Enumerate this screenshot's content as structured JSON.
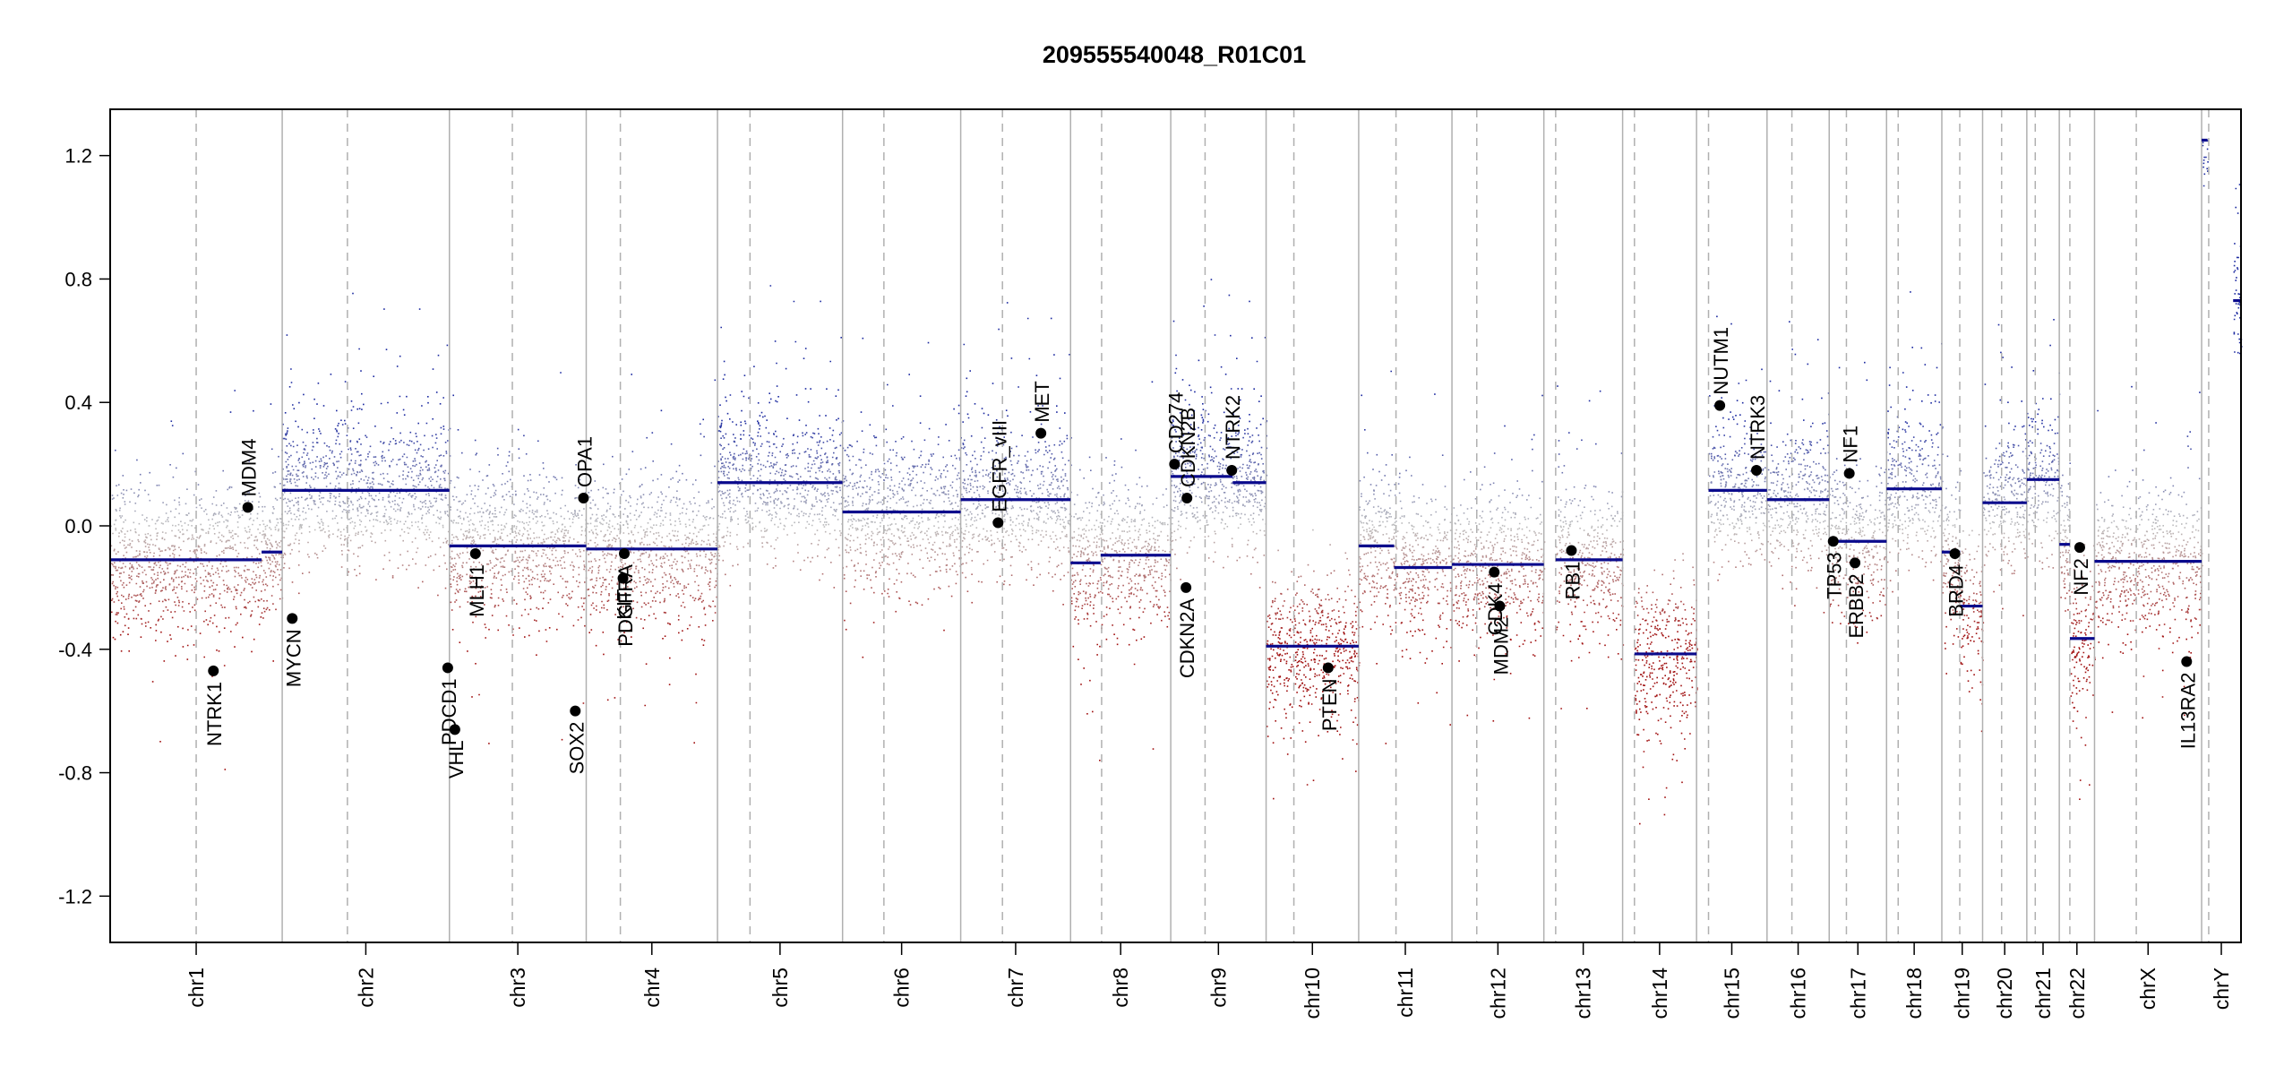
{
  "chart_data": {
    "type": "scatter",
    "title": "209555540048_R01C01",
    "xlabel": "",
    "ylabel": "",
    "ylim": [
      -1.35,
      1.35
    ],
    "yticks": [
      -1.2,
      -0.8,
      -0.4,
      0.0,
      0.4,
      0.8,
      1.2
    ],
    "ytick_labels": [
      "-1.2",
      "-0.8",
      "-0.4",
      "0.0",
      "0.4",
      "0.8",
      "1.2"
    ],
    "grid": false,
    "colors": {
      "gain": "#1c2aa0",
      "loss": "#a01010",
      "neutral": "#bdbdbd",
      "segment": "#0a0a8c",
      "gene": "#000000",
      "boundary": "#b0b0b0"
    },
    "chromosomes": [
      {
        "name": "chr1",
        "size": 249,
        "centromere": 0.5,
        "segments": [
          {
            "start": 0.0,
            "end": 0.88,
            "value": -0.11
          },
          {
            "start": 0.88,
            "end": 1.0,
            "value": -0.085
          }
        ]
      },
      {
        "name": "chr2",
        "size": 242,
        "centromere": 0.39,
        "segments": [
          {
            "start": 0.0,
            "end": 1.0,
            "value": 0.115
          }
        ]
      },
      {
        "name": "chr3",
        "size": 198,
        "centromere": 0.46,
        "segments": [
          {
            "start": 0.0,
            "end": 1.0,
            "value": -0.065
          }
        ]
      },
      {
        "name": "chr4",
        "size": 190,
        "centromere": 0.26,
        "segments": [
          {
            "start": 0.0,
            "end": 1.0,
            "value": -0.075
          }
        ]
      },
      {
        "name": "chr5",
        "size": 181,
        "centromere": 0.26,
        "segments": [
          {
            "start": 0.0,
            "end": 1.0,
            "value": 0.14
          }
        ]
      },
      {
        "name": "chr6",
        "size": 171,
        "centromere": 0.35,
        "segments": [
          {
            "start": 0.0,
            "end": 1.0,
            "value": 0.045
          }
        ]
      },
      {
        "name": "chr7",
        "size": 159,
        "centromere": 0.38,
        "segments": [
          {
            "start": 0.0,
            "end": 1.0,
            "value": 0.085
          }
        ]
      },
      {
        "name": "chr8",
        "size": 145,
        "centromere": 0.31,
        "segments": [
          {
            "start": 0.0,
            "end": 0.3,
            "value": -0.12
          },
          {
            "start": 0.3,
            "end": 1.0,
            "value": -0.095
          }
        ]
      },
      {
        "name": "chr9",
        "size": 138,
        "centromere": 0.36,
        "segments": [
          {
            "start": 0.0,
            "end": 0.65,
            "value": 0.16
          },
          {
            "start": 0.65,
            "end": 1.0,
            "value": 0.14
          }
        ]
      },
      {
        "name": "chr10",
        "size": 134,
        "centromere": 0.3,
        "segments": [
          {
            "start": 0.0,
            "end": 1.0,
            "value": -0.39
          }
        ]
      },
      {
        "name": "chr11",
        "size": 135,
        "centromere": 0.4,
        "segments": [
          {
            "start": 0.0,
            "end": 0.38,
            "value": -0.065
          },
          {
            "start": 0.38,
            "end": 1.0,
            "value": -0.135
          }
        ]
      },
      {
        "name": "chr12",
        "size": 133,
        "centromere": 0.27,
        "segments": [
          {
            "start": 0.0,
            "end": 1.0,
            "value": -0.125
          }
        ]
      },
      {
        "name": "chr13",
        "size": 114,
        "centromere": 0.15,
        "segments": [
          {
            "start": 0.15,
            "end": 1.0,
            "value": -0.11
          }
        ]
      },
      {
        "name": "chr14",
        "size": 107,
        "centromere": 0.16,
        "segments": [
          {
            "start": 0.16,
            "end": 1.0,
            "value": -0.415
          }
        ]
      },
      {
        "name": "chr15",
        "size": 102,
        "centromere": 0.17,
        "segments": [
          {
            "start": 0.17,
            "end": 1.0,
            "value": 0.115
          }
        ]
      },
      {
        "name": "chr16",
        "size": 90,
        "centromere": 0.4,
        "segments": [
          {
            "start": 0.0,
            "end": 1.0,
            "value": 0.085
          }
        ]
      },
      {
        "name": "chr17",
        "size": 83,
        "centromere": 0.3,
        "segments": [
          {
            "start": 0.0,
            "end": 1.0,
            "value": -0.05
          }
        ]
      },
      {
        "name": "chr18",
        "size": 80,
        "centromere": 0.21,
        "segments": [
          {
            "start": 0.0,
            "end": 1.0,
            "value": 0.12
          }
        ]
      },
      {
        "name": "chr19",
        "size": 59,
        "centromere": 0.44,
        "segments": [
          {
            "start": 0.0,
            "end": 0.45,
            "value": -0.085
          },
          {
            "start": 0.45,
            "end": 1.0,
            "value": -0.26
          }
        ]
      },
      {
        "name": "chr20",
        "size": 64,
        "centromere": 0.43,
        "segments": [
          {
            "start": 0.0,
            "end": 1.0,
            "value": 0.075
          }
        ]
      },
      {
        "name": "chr21",
        "size": 47,
        "centromere": 0.26,
        "segments": [
          {
            "start": 0.0,
            "end": 1.0,
            "value": 0.15
          }
        ]
      },
      {
        "name": "chr22",
        "size": 51,
        "centromere": 0.3,
        "segments": [
          {
            "start": 0.0,
            "end": 0.3,
            "value": -0.06
          },
          {
            "start": 0.3,
            "end": 1.0,
            "value": -0.365
          }
        ]
      },
      {
        "name": "chrX",
        "size": 155,
        "centromere": 0.39,
        "segments": [
          {
            "start": 0.0,
            "end": 1.0,
            "value": -0.115
          }
        ]
      },
      {
        "name": "chrY",
        "size": 57,
        "centromere": 0.18,
        "segments": [
          {
            "start": 0.0,
            "end": 0.15,
            "value": 1.25
          },
          {
            "start": 0.8,
            "end": 1.0,
            "value": 0.73
          }
        ]
      }
    ],
    "genes": [
      {
        "name": "NTRK1",
        "chr": "chr1",
        "pos": 0.6,
        "value": -0.47
      },
      {
        "name": "MDM4",
        "chr": "chr1",
        "pos": 0.8,
        "value": 0.06
      },
      {
        "name": "MYCN",
        "chr": "chr2",
        "pos": 0.06,
        "value": -0.3
      },
      {
        "name": "PDCD1",
        "chr": "chr2",
        "pos": 0.99,
        "value": -0.46
      },
      {
        "name": "VHL",
        "chr": "chr3",
        "pos": 0.04,
        "value": -0.66
      },
      {
        "name": "MLH1",
        "chr": "chr3",
        "pos": 0.19,
        "value": -0.09
      },
      {
        "name": "SOX2",
        "chr": "chr3",
        "pos": 0.92,
        "value": -0.6
      },
      {
        "name": "OPA1",
        "chr": "chr3",
        "pos": 0.98,
        "value": 0.09
      },
      {
        "name": "KIT",
        "chr": "chr4",
        "pos": 0.28,
        "value": -0.17
      },
      {
        "name": "PDGFRA",
        "chr": "chr4",
        "pos": 0.29,
        "value": -0.09
      },
      {
        "name": "EGFR_vIII",
        "chr": "chr7",
        "pos": 0.34,
        "value": 0.01
      },
      {
        "name": "MET",
        "chr": "chr7",
        "pos": 0.73,
        "value": 0.3
      },
      {
        "name": "CD274",
        "chr": "chr9",
        "pos": 0.04,
        "value": 0.2
      },
      {
        "name": "CDKN2A",
        "chr": "chr9",
        "pos": 0.16,
        "value": -0.2
      },
      {
        "name": "CDKN2B",
        "chr": "chr9",
        "pos": 0.17,
        "value": 0.09
      },
      {
        "name": "NTRK2",
        "chr": "chr9",
        "pos": 0.64,
        "value": 0.18
      },
      {
        "name": "PTEN",
        "chr": "chr10",
        "pos": 0.67,
        "value": -0.46
      },
      {
        "name": "CDK4",
        "chr": "chr12",
        "pos": 0.46,
        "value": -0.15
      },
      {
        "name": "MDM2",
        "chr": "chr12",
        "pos": 0.52,
        "value": -0.26
      },
      {
        "name": "RB1",
        "chr": "chr13",
        "pos": 0.35,
        "value": -0.08
      },
      {
        "name": "NUTM1",
        "chr": "chr15",
        "pos": 0.33,
        "value": 0.39
      },
      {
        "name": "NTRK3",
        "chr": "chr15",
        "pos": 0.85,
        "value": 0.18
      },
      {
        "name": "TP53",
        "chr": "chr17",
        "pos": 0.07,
        "value": -0.05
      },
      {
        "name": "NF1",
        "chr": "chr17",
        "pos": 0.35,
        "value": 0.17
      },
      {
        "name": "ERBB2",
        "chr": "chr17",
        "pos": 0.45,
        "value": -0.12
      },
      {
        "name": "BRD4",
        "chr": "chr19",
        "pos": 0.32,
        "value": -0.09
      },
      {
        "name": "NF2",
        "chr": "chr22",
        "pos": 0.58,
        "value": -0.07
      },
      {
        "name": "IL13RA2",
        "chr": "chrX",
        "pos": 0.86,
        "value": -0.44
      }
    ]
  }
}
